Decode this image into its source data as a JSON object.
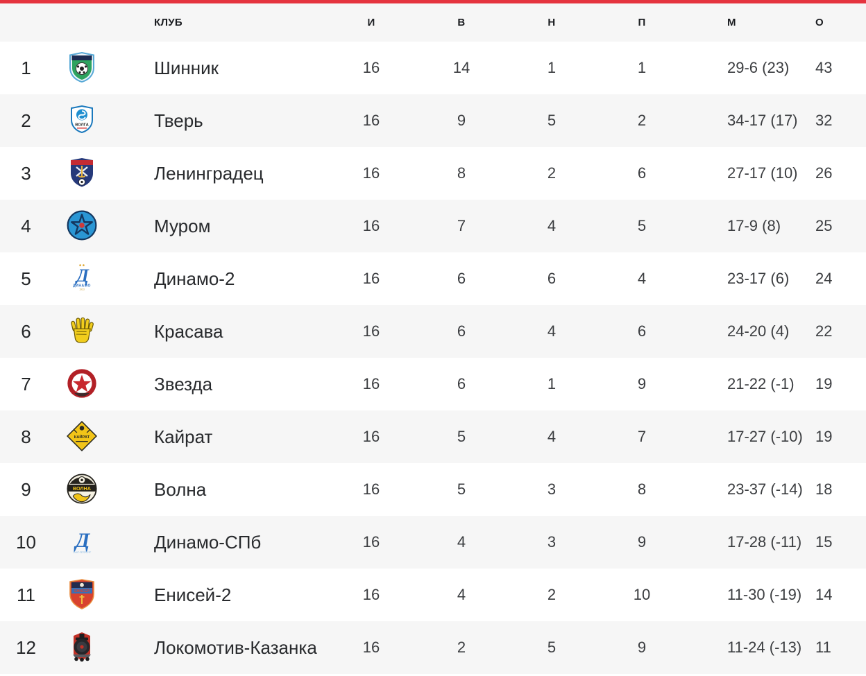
{
  "accent_color": "#e5343f",
  "table": {
    "headers": {
      "club": "КЛУБ",
      "played": "И",
      "wins": "В",
      "draws": "Н",
      "losses": "П",
      "goals": "М",
      "points": "О"
    },
    "rows": [
      {
        "position": "1",
        "club": "Шинник",
        "logo": "shinnik",
        "played": "16",
        "wins": "14",
        "draws": "1",
        "losses": "1",
        "goals": "29-6 (23)",
        "points": "43"
      },
      {
        "position": "2",
        "club": "Тверь",
        "logo": "tver",
        "played": "16",
        "wins": "9",
        "draws": "5",
        "losses": "2",
        "goals": "34-17 (17)",
        "points": "32"
      },
      {
        "position": "3",
        "club": "Ленинградец",
        "logo": "leningradets",
        "played": "16",
        "wins": "8",
        "draws": "2",
        "losses": "6",
        "goals": "27-17 (10)",
        "points": "26"
      },
      {
        "position": "4",
        "club": "Муром",
        "logo": "murom",
        "played": "16",
        "wins": "7",
        "draws": "4",
        "losses": "5",
        "goals": "17-9 (8)",
        "points": "25"
      },
      {
        "position": "5",
        "club": "Динамо-2",
        "logo": "dinamo2",
        "played": "16",
        "wins": "6",
        "draws": "6",
        "losses": "4",
        "goals": "23-17 (6)",
        "points": "24"
      },
      {
        "position": "6",
        "club": "Красава",
        "logo": "krasava",
        "played": "16",
        "wins": "6",
        "draws": "4",
        "losses": "6",
        "goals": "24-20 (4)",
        "points": "22"
      },
      {
        "position": "7",
        "club": "Звезда",
        "logo": "zvezda",
        "played": "16",
        "wins": "6",
        "draws": "1",
        "losses": "9",
        "goals": "21-22 (-1)",
        "points": "19"
      },
      {
        "position": "8",
        "club": "Кайрат",
        "logo": "kairat",
        "played": "16",
        "wins": "5",
        "draws": "4",
        "losses": "7",
        "goals": "17-27 (-10)",
        "points": "19"
      },
      {
        "position": "9",
        "club": "Волна",
        "logo": "volna",
        "played": "16",
        "wins": "5",
        "draws": "3",
        "losses": "8",
        "goals": "23-37 (-14)",
        "points": "18"
      },
      {
        "position": "10",
        "club": "Динамо-СПб",
        "logo": "dinamospb",
        "played": "16",
        "wins": "4",
        "draws": "3",
        "losses": "9",
        "goals": "17-28 (-11)",
        "points": "15"
      },
      {
        "position": "11",
        "club": "Енисей-2",
        "logo": "yenisei2",
        "played": "16",
        "wins": "4",
        "draws": "2",
        "losses": "10",
        "goals": "11-30 (-19)",
        "points": "14"
      },
      {
        "position": "12",
        "club": "Локомотив-Казанка",
        "logo": "lokomotiv_kazanka",
        "played": "16",
        "wins": "2",
        "draws": "5",
        "losses": "9",
        "goals": "11-24 (-13)",
        "points": "11"
      }
    ]
  }
}
